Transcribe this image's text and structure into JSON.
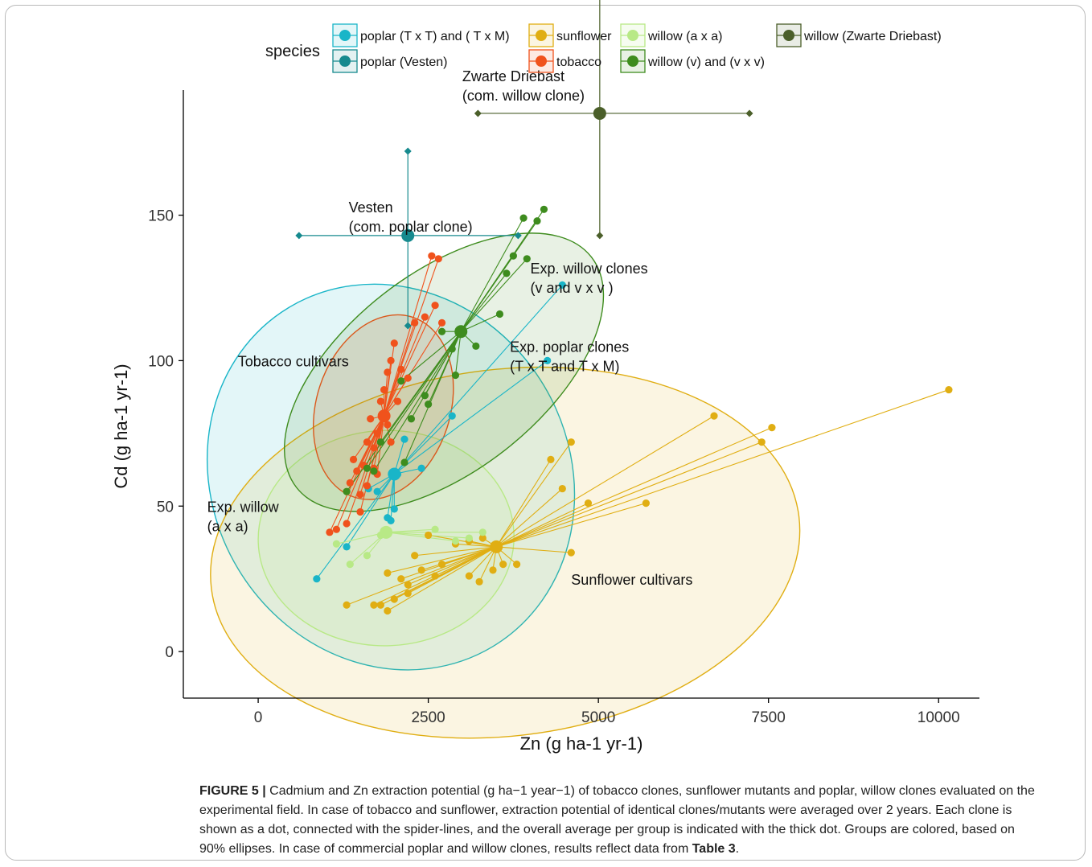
{
  "chart_data": {
    "type": "scatter",
    "xlabel": "Zn (g ha-1 yr-1)",
    "ylabel": "Cd (g ha-1 yr-1)",
    "xlim": [
      -1100,
      10600
    ],
    "ylim": [
      -16,
      193
    ],
    "xticks": [
      0,
      2500,
      5000,
      7500,
      10000
    ],
    "yticks": [
      0,
      50,
      100,
      150
    ],
    "grid": false,
    "legend_position": "top",
    "legend_title": "species",
    "series": [
      {
        "key": "poplar_txt",
        "name": "poplar (T x T) and ( T x M)",
        "color": "#19B5C8",
        "mean": [
          2000,
          61
        ],
        "ellipse": {
          "center": [
            1950,
            60
          ],
          "rx": 2620,
          "ry": 68,
          "angle_deg": 31
        },
        "points": [
          [
            860,
            25
          ],
          [
            1900,
            46
          ],
          [
            2050,
            61
          ],
          [
            2150,
            73
          ],
          [
            2400,
            63
          ],
          [
            2850,
            81
          ],
          [
            4250,
            100
          ],
          [
            4470,
            126
          ],
          [
            1300,
            36
          ],
          [
            1750,
            55
          ],
          [
            2000,
            49
          ],
          [
            1620,
            56
          ],
          [
            1950,
            45
          ]
        ]
      },
      {
        "key": "poplar_vesten",
        "name": "poplar (Vesten)",
        "color": "#168A8E",
        "mean": [
          2200,
          143
        ],
        "errbar": {
          "x": [
            600,
            3820
          ],
          "y": [
            112,
            172
          ]
        },
        "points": []
      },
      {
        "key": "sunflower",
        "name": "sunflower",
        "color": "#E0AE13",
        "mean": [
          3500,
          36
        ],
        "ellipse": {
          "center": [
            3630,
            34
          ],
          "rx": 4350,
          "ry": 63,
          "angle_deg": 7
        },
        "points": [
          [
            1300,
            16
          ],
          [
            1700,
            16
          ],
          [
            1900,
            14
          ],
          [
            2200,
            20
          ],
          [
            2400,
            28
          ],
          [
            2600,
            26
          ],
          [
            2700,
            30
          ],
          [
            3100,
            26
          ],
          [
            3250,
            24
          ],
          [
            3450,
            28
          ],
          [
            3600,
            30
          ],
          [
            3800,
            30
          ],
          [
            2300,
            33
          ],
          [
            2500,
            40
          ],
          [
            2900,
            37
          ],
          [
            3100,
            38
          ],
          [
            3300,
            39
          ],
          [
            4300,
            66
          ],
          [
            4470,
            56
          ],
          [
            4600,
            72
          ],
          [
            4850,
            51
          ],
          [
            4600,
            34
          ],
          [
            5700,
            51
          ],
          [
            6700,
            81
          ],
          [
            7400,
            72
          ],
          [
            7550,
            77
          ],
          [
            10150,
            90
          ],
          [
            1900,
            27
          ],
          [
            2100,
            25
          ],
          [
            2000,
            18
          ],
          [
            2200,
            23
          ],
          [
            1800,
            16
          ]
        ]
      },
      {
        "key": "willow_axa",
        "name": "willow (a x a)",
        "color": "#B8E986",
        "mean": [
          1880,
          41
        ],
        "ellipse": {
          "center": [
            1880,
            39
          ],
          "rx": 1880,
          "ry": 37,
          "angle_deg": 2
        },
        "points": [
          [
            1150,
            37
          ],
          [
            1600,
            33
          ],
          [
            1350,
            30
          ],
          [
            2600,
            42
          ],
          [
            3300,
            41
          ],
          [
            2900,
            38
          ],
          [
            3100,
            39
          ],
          [
            1800,
            40
          ]
        ]
      },
      {
        "key": "tobacco",
        "name": "tobacco",
        "color": "#F0521C",
        "mean": [
          1850,
          81
        ],
        "ellipse": {
          "center": [
            1840,
            84
          ],
          "rx": 1390,
          "ry": 23,
          "angle_deg": 72
        },
        "points": [
          [
            1050,
            41
          ],
          [
            1150,
            42
          ],
          [
            1300,
            44
          ],
          [
            1350,
            58
          ],
          [
            1400,
            66
          ],
          [
            1450,
            62
          ],
          [
            1500,
            48
          ],
          [
            1550,
            64
          ],
          [
            1600,
            72
          ],
          [
            1650,
            80
          ],
          [
            1700,
            70
          ],
          [
            1750,
            75
          ],
          [
            1800,
            86
          ],
          [
            1850,
            90
          ],
          [
            1900,
            96
          ],
          [
            1950,
            100
          ],
          [
            2000,
            106
          ],
          [
            2100,
            97
          ],
          [
            2200,
            94
          ],
          [
            2300,
            113
          ],
          [
            2450,
            115
          ],
          [
            2600,
            119
          ],
          [
            2700,
            113
          ],
          [
            2550,
            136
          ],
          [
            2650,
            135
          ],
          [
            1700,
            63
          ],
          [
            1600,
            57
          ],
          [
            1500,
            54
          ],
          [
            1900,
            78
          ],
          [
            2050,
            86
          ],
          [
            1950,
            72
          ],
          [
            1750,
            61
          ]
        ]
      },
      {
        "key": "willow_v",
        "name": "willow (v) and (v x v)",
        "color": "#3E8C1E",
        "mean": [
          2980,
          110
        ],
        "ellipse": {
          "center": [
            2730,
            96
          ],
          "rx": 2750,
          "ry": 34,
          "angle_deg": 38
        },
        "points": [
          [
            1300,
            55
          ],
          [
            1600,
            63
          ],
          [
            1700,
            62
          ],
          [
            1800,
            72
          ],
          [
            2100,
            93
          ],
          [
            2250,
            80
          ],
          [
            2450,
            88
          ],
          [
            2700,
            110
          ],
          [
            2850,
            104
          ],
          [
            2900,
            95
          ],
          [
            3200,
            105
          ],
          [
            3550,
            116
          ],
          [
            3650,
            130
          ],
          [
            3750,
            136
          ],
          [
            3900,
            149
          ],
          [
            4100,
            148
          ],
          [
            4200,
            152
          ],
          [
            3950,
            135
          ],
          [
            2500,
            85
          ],
          [
            2150,
            65
          ]
        ]
      },
      {
        "key": "willow_zd",
        "name": "willow (Zwarte Driebast)",
        "color": "#4B5F2A",
        "mean": [
          5020,
          185
        ],
        "errbar": {
          "x": [
            3230,
            7220
          ],
          "y": [
            143,
            226
          ]
        },
        "points": []
      }
    ],
    "annotations": [
      {
        "series": "willow_zd",
        "lines": [
          "Zwarte Driebast",
          "(com. willow clone)"
        ],
        "at": [
          3000,
          196
        ]
      },
      {
        "series": "poplar_vesten",
        "lines": [
          "Vesten",
          "(com. poplar clone)"
        ],
        "at": [
          1330,
          151
        ]
      },
      {
        "series": "willow_v",
        "lines": [
          "Exp. willow clones",
          "(v and v x v )"
        ],
        "at": [
          4000,
          130
        ]
      },
      {
        "series": "tobacco",
        "lines": [
          "Tobacco cultivars"
        ],
        "at": [
          -300,
          98
        ]
      },
      {
        "series": "poplar_txt",
        "lines": [
          "Exp. poplar clones",
          "(T x T and T x M)"
        ],
        "at": [
          3700,
          103
        ]
      },
      {
        "series": "willow_axa",
        "lines": [
          "Exp. willow",
          "(a x a)"
        ],
        "at": [
          -750,
          48
        ]
      },
      {
        "series": "sunflower",
        "lines": [
          "Sunflower cultivars"
        ],
        "at": [
          4600,
          23
        ]
      }
    ]
  },
  "caption": {
    "label": "FIGURE 5 |",
    "text": "Cadmium and Zn extraction potential (g ha−1 year−1) of tobacco clones, sunflower mutants and poplar, willow clones evaluated on the experimental field. In case of tobacco and sunflower, extraction potential of identical clones/mutants were averaged over 2 years. Each clone is shown as a dot, connected with the spider-lines, and the overall average per group is indicated with the thick dot. Groups are colored, based on 90% ellipses. In case of commercial poplar and willow clones, results reflect data from",
    "ref": "Table 3",
    "end": "."
  }
}
